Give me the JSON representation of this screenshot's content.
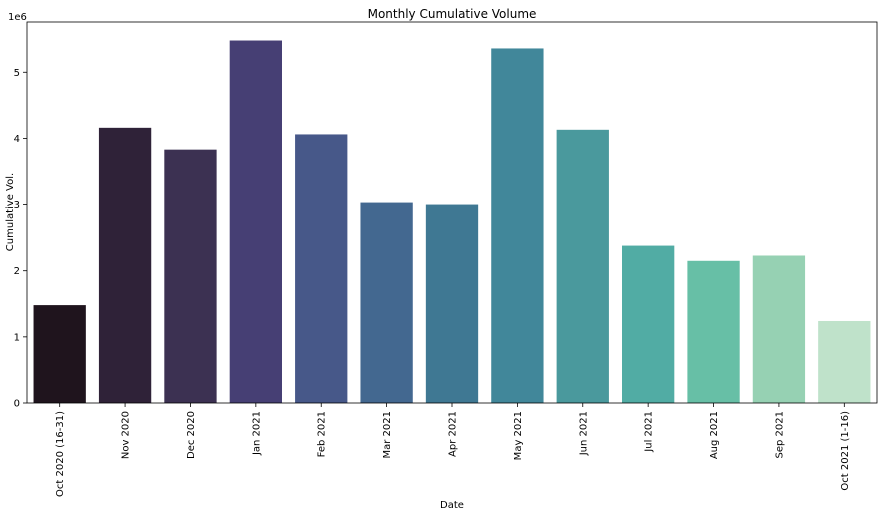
{
  "chart_data": {
    "type": "bar",
    "title": "Monthly Cumulative Volume",
    "xlabel": "Date",
    "ylabel": "Cumulative Vol.",
    "y_scale_label": "1e6",
    "ylim": [
      0,
      5.76
    ],
    "yticks": [
      0,
      1,
      2,
      3,
      4,
      5
    ],
    "ytick_labels": [
      "0",
      "1",
      "2",
      "3",
      "4",
      "5"
    ],
    "grid": false,
    "categories": [
      "Oct 2020 (16-31)",
      "Nov 2020",
      "Dec 2020",
      "Jan 2021",
      "Feb 2021",
      "Mar 2021",
      "Apr 2021",
      "May 2021",
      "Jun 2021",
      "Jul 2021",
      "Aug 2021",
      "Sep 2021",
      "Oct 2021 (1-16)"
    ],
    "values": [
      1.48,
      4.16,
      3.83,
      5.48,
      4.06,
      3.03,
      3.0,
      5.36,
      4.13,
      2.38,
      2.15,
      2.23,
      1.24
    ],
    "colors": [
      "#1f141d",
      "#2f2238",
      "#3c3152",
      "#463f74",
      "#475889",
      "#436890",
      "#3f7893",
      "#41879a",
      "#4a999d",
      "#51aca4",
      "#67bfa6",
      "#96d1b3",
      "#bfe2ca"
    ]
  }
}
